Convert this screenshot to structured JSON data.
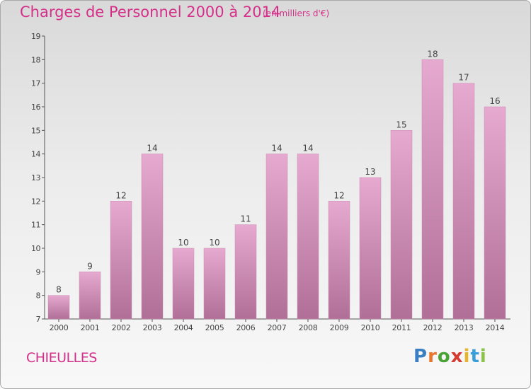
{
  "title": "Charges de Personnel 2000 à 2014",
  "subtitle": "(en milliers d'€)",
  "commune": "CHIEULLES",
  "logo": {
    "text": "Proxiti",
    "letter_colors": [
      "#3a7fc1",
      "#e8762d",
      "#4aa336",
      "#d43a2f",
      "#e8b42d",
      "#3a9fd8",
      "#8bc34a"
    ]
  },
  "colors": {
    "title": "#d4308a",
    "bar_light": "#e6a9cf",
    "bar_dark": "#b06f97",
    "axis": "#555555"
  },
  "chart_data": {
    "type": "bar",
    "title": "Charges de Personnel 2000 à 2014",
    "subtitle": "(en milliers d'€)",
    "xlabel": "",
    "ylabel": "",
    "categories": [
      "2000",
      "2001",
      "2002",
      "2003",
      "2004",
      "2005",
      "2006",
      "2007",
      "2008",
      "2009",
      "2010",
      "2011",
      "2012",
      "2013",
      "2014"
    ],
    "values": [
      8,
      9,
      12,
      14,
      10,
      10,
      11,
      14,
      14,
      12,
      13,
      15,
      18,
      17,
      16
    ],
    "ylim": [
      7,
      19
    ],
    "yticks": [
      7,
      8,
      9,
      10,
      11,
      12,
      13,
      14,
      15,
      16,
      17,
      18,
      19
    ],
    "grid": false,
    "data_labels": true
  }
}
